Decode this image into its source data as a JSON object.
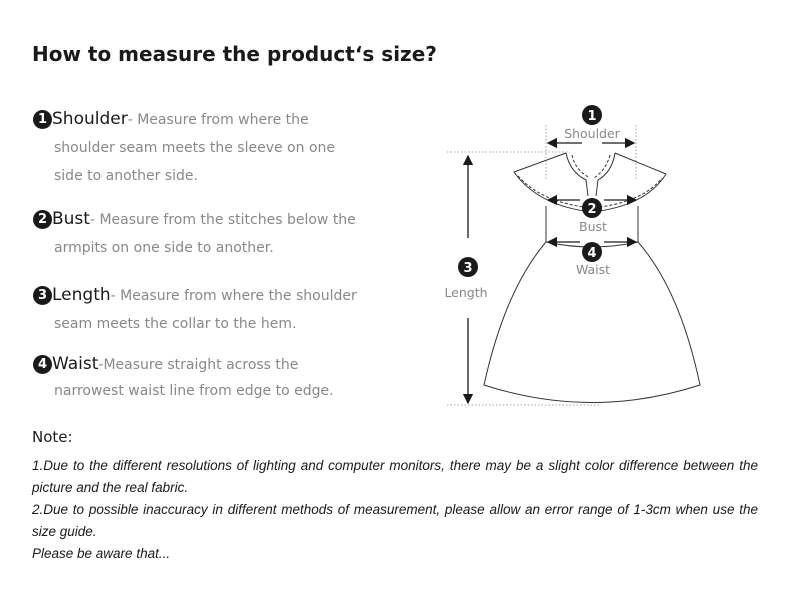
{
  "title": "How to measure the product‘s size?",
  "items": [
    {
      "num": "1",
      "name": "Shoulder",
      "first": "- Measure from where the",
      "rest": "shoulder seam meets the sleeve on one side to another side."
    },
    {
      "num": "2",
      "name": "Bust",
      "first": "- Measure from the stitches below the",
      "rest": "armpits on one side to another."
    },
    {
      "num": "3",
      "name": "Length",
      "first": "- Measure from where the shoulder",
      "rest": "seam meets the collar to the hem."
    },
    {
      "num": "4",
      "name": "Waist",
      "first": "-Measure straight across the",
      "rest": "narrowest waist line from edge to edge."
    }
  ],
  "diagram": {
    "shoulder": "Shoulder",
    "bust": "Bust",
    "length": "Length",
    "waist": "Waist",
    "n1": "1",
    "n2": "2",
    "n3": "3",
    "n4": "4"
  },
  "note": {
    "heading": "Note:",
    "lines": [
      "1.Due to the different resolutions of lighting and computer monitors, there may be a slight color difference between the picture and the real fabric.",
      "2.Due to possible inaccuracy in different methods of measurement, please allow an error range of 1-3cm when use the size guide.",
      "Please be aware that..."
    ]
  }
}
